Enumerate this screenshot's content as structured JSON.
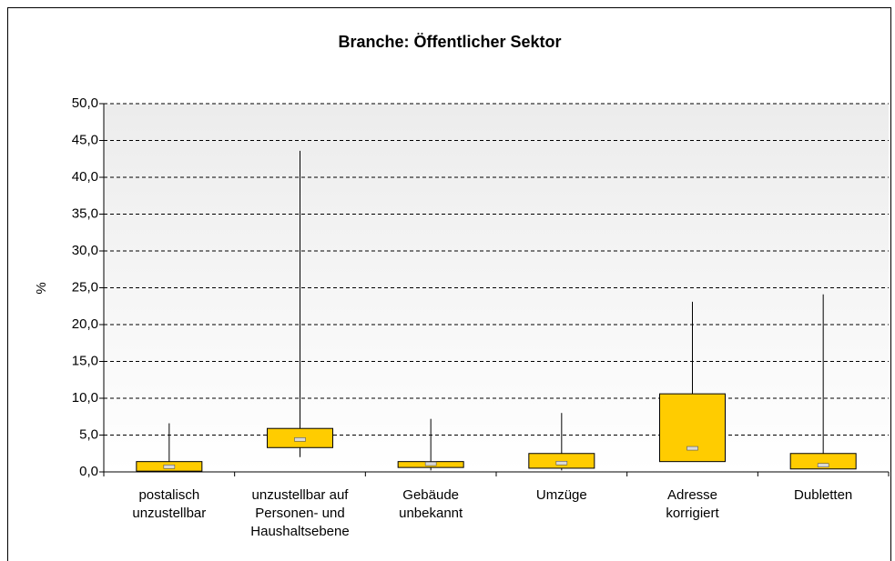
{
  "chart_data": {
    "type": "box",
    "title": "Branche: Öffentlicher Sektor",
    "y_label": "%",
    "categories": [
      [
        "postalisch",
        "unzustellbar"
      ],
      [
        "unzustellbar auf",
        "Personen- und",
        "Haushaltsebene"
      ],
      [
        "Gebäude",
        "unbekannt"
      ],
      [
        "Umzüge"
      ],
      [
        "Adresse",
        "korrigiert"
      ],
      [
        "Dubletten"
      ]
    ],
    "min": [
      0.1,
      2.0,
      0.2,
      0.2,
      1.4,
      0.4
    ],
    "q1": [
      0.1,
      3.3,
      0.6,
      0.5,
      1.4,
      0.4
    ],
    "median": [
      0.7,
      4.4,
      1.1,
      1.2,
      3.2,
      0.9
    ],
    "q3": [
      1.4,
      5.9,
      1.4,
      2.5,
      10.6,
      2.5
    ],
    "max": [
      6.6,
      43.6,
      7.2,
      8.0,
      23.1,
      24.1
    ],
    "color": "#ffcc00",
    "median_color": "#d9d9d9",
    "ylim": [
      0,
      50
    ],
    "yticks": [
      {
        "value": 0,
        "label": "0,0"
      },
      {
        "value": 5,
        "label": "5,0"
      },
      {
        "value": 10,
        "label": "10,0"
      },
      {
        "value": 15,
        "label": "15,0"
      },
      {
        "value": 20,
        "label": "20,0"
      },
      {
        "value": 25,
        "label": "25,0"
      },
      {
        "value": 30,
        "label": "30,0"
      },
      {
        "value": 35,
        "label": "35,0"
      },
      {
        "value": 40,
        "label": "40,0"
      },
      {
        "value": 45,
        "label": "45,0"
      },
      {
        "value": 50,
        "label": "50,0"
      }
    ],
    "grid": true
  }
}
